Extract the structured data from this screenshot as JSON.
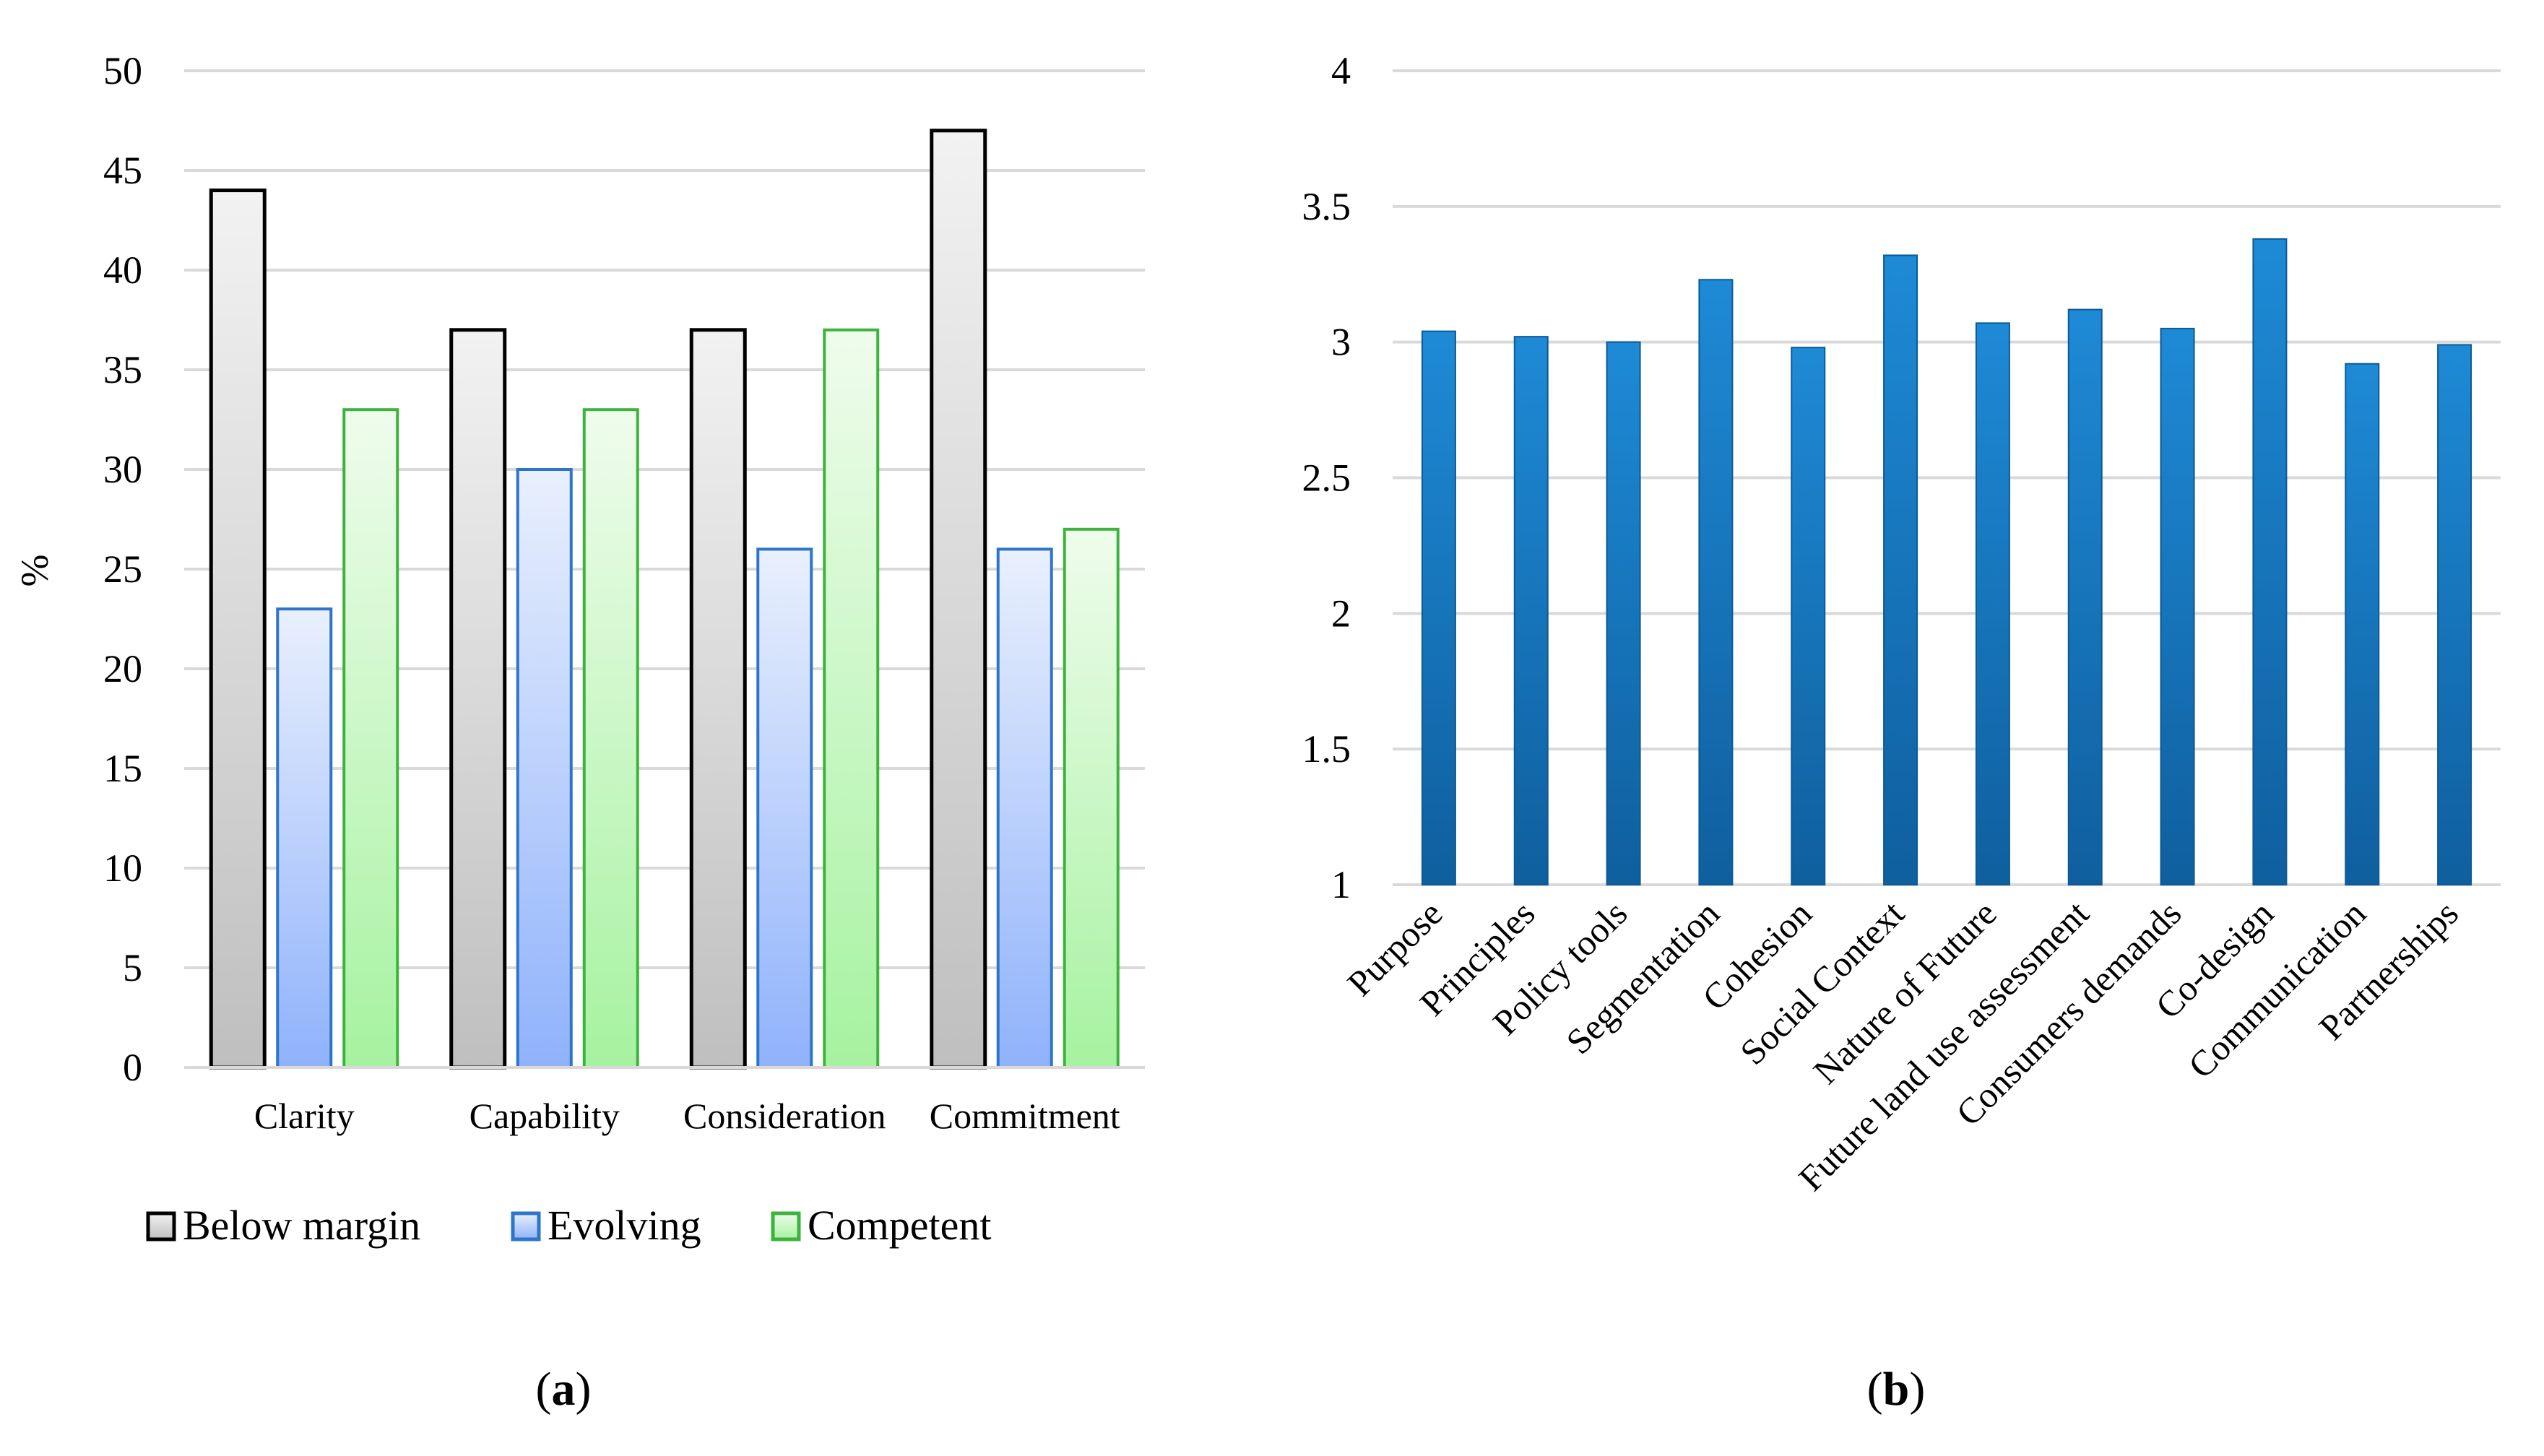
{
  "chart_data": [
    {
      "type": "bar",
      "panel_label": {
        "open": "(",
        "letter": "a",
        "close": ")"
      },
      "ylabel": "%",
      "ylim": [
        0,
        50
      ],
      "yticks": [
        0,
        5,
        10,
        15,
        20,
        25,
        30,
        35,
        40,
        45,
        50
      ],
      "grid": true,
      "categories": [
        "Clarity",
        "Capability",
        "Consideration",
        "Commitment"
      ],
      "series": [
        {
          "name": "Below margin",
          "values": [
            44,
            37,
            37,
            47
          ],
          "stroke": "#000000",
          "fill_top": "#f2f2f2",
          "fill_bottom": "#bfbfbf"
        },
        {
          "name": "Evolving",
          "values": [
            23,
            30,
            26,
            26
          ],
          "stroke": "#2e75c9",
          "fill_top": "#e9f0fd",
          "fill_bottom": "#8fb2fb"
        },
        {
          "name": "Competent",
          "values": [
            33,
            33,
            37,
            27
          ],
          "stroke": "#3db33d",
          "fill_top": "#effcec",
          "fill_bottom": "#a6f2a0"
        }
      ],
      "legend_position": "bottom"
    },
    {
      "type": "bar",
      "panel_label": {
        "open": "(",
        "letter": "b",
        "close": ")"
      },
      "ylim": [
        1,
        4
      ],
      "yticks": [
        "1",
        "1.5",
        "2",
        "2.5",
        "3",
        "3.5",
        "4"
      ],
      "grid": true,
      "categories": [
        "Purpose",
        "Principles",
        "Policy tools",
        "Segmentation",
        "Cohesion",
        "Social Context",
        "Nature of Future",
        "Future land use assessment",
        "Consumers demands",
        "Co-design",
        "Communication",
        "Partnerships"
      ],
      "values": [
        3.04,
        3.02,
        3.0,
        3.23,
        2.98,
        3.32,
        3.07,
        3.12,
        3.05,
        3.38,
        2.92,
        2.99
      ],
      "bar_color_light": "#1e8ad6",
      "bar_color_dark": "#0f5f9e"
    }
  ]
}
